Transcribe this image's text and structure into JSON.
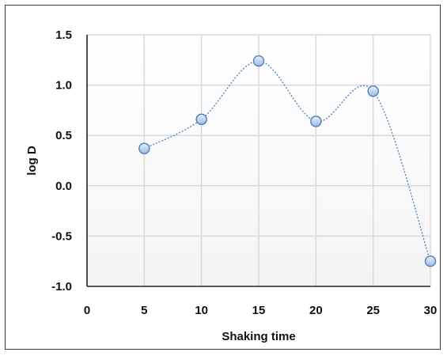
{
  "chart_data": {
    "type": "line",
    "title": "",
    "xlabel": "Shaking time",
    "ylabel": "log D",
    "xlim": [
      0,
      30
    ],
    "ylim": [
      -1.0,
      1.5
    ],
    "x_ticks": [
      "0",
      "5",
      "10",
      "15",
      "20",
      "25",
      "30"
    ],
    "y_ticks": [
      "1.5",
      "1.0",
      "0.5",
      "0.0",
      "-0.5",
      "-1.0"
    ],
    "grid": true,
    "line_style": "dotted, smoothed",
    "marker": "circle",
    "series": [
      {
        "x": [
          5,
          10,
          15,
          20,
          25,
          30
        ],
        "y": [
          0.37,
          0.66,
          1.24,
          0.64,
          0.94,
          -0.75
        ],
        "color": "#4a7ebb",
        "marker_fill": "#b9cdea"
      }
    ]
  }
}
